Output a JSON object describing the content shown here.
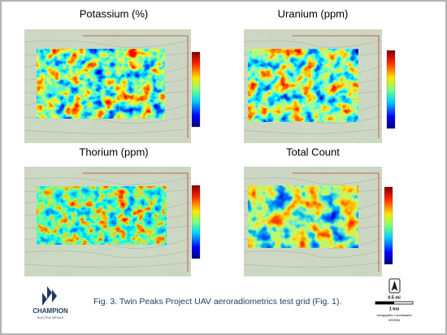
{
  "panels": [
    {
      "title": "Potassium (%)"
    },
    {
      "title": "Uranium (ppm)"
    },
    {
      "title": "Thorium (ppm)"
    },
    {
      "title": "Total Count"
    }
  ],
  "caption": "Fig. 3.  Twin Peaks Project UAV aeroradiometrics test grid (Fig. 1).",
  "logo": {
    "name": "CHAMPION",
    "tagline": "ELECTRIC METALS"
  },
  "scale": {
    "miles": "0.5 mi",
    "km": "1 km",
    "coordinates": "Geographic Coordinates",
    "datum": "WGS84"
  }
}
